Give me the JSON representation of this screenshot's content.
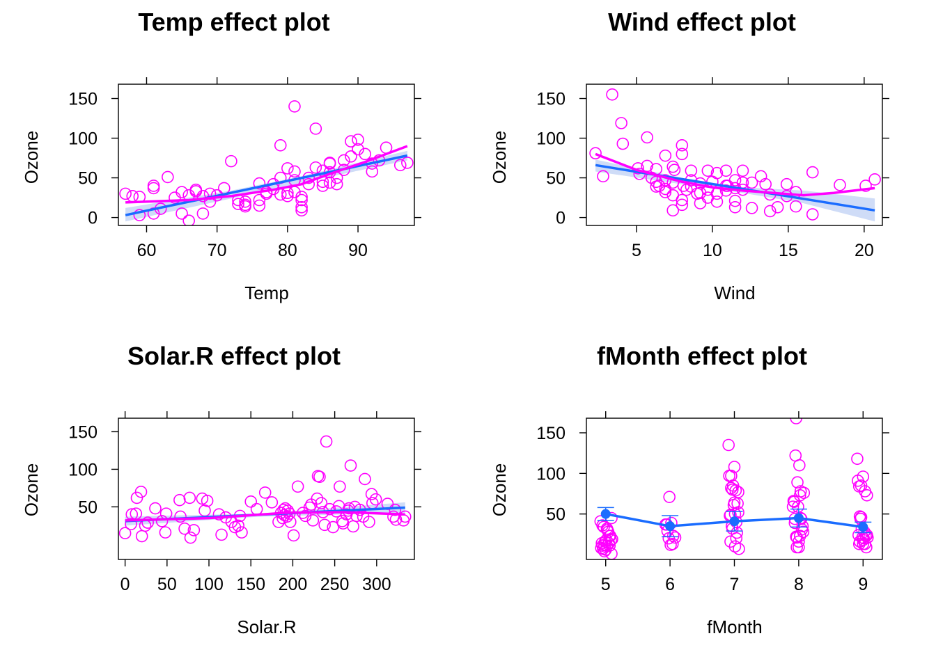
{
  "colors": {
    "points": "#ff00ff",
    "fit": "#1a6cff",
    "band": "#cfdcf7",
    "smooth": "#ff00ff",
    "axis": "#000000"
  },
  "chart_data": [
    {
      "type": "scatter",
      "title": "Temp effect plot",
      "xlabel": "Temp",
      "ylabel": "Ozone",
      "xlim": [
        56,
        98
      ],
      "ylim": [
        -10,
        168
      ],
      "xticks": [
        60,
        70,
        80,
        90
      ],
      "yticks": [
        0,
        50,
        100,
        150
      ],
      "fit": {
        "x": [
          57,
          97
        ],
        "y": [
          3,
          78
        ]
      },
      "band": {
        "x": [
          57,
          72,
          82,
          97
        ],
        "upper": [
          12,
          34,
          52,
          84
        ],
        "lower": [
          -5,
          24,
          44,
          72
        ]
      },
      "smooth": {
        "x": [
          57,
          66,
          72,
          78,
          82,
          86,
          91,
          97
        ],
        "y": [
          19,
          22,
          27,
          35,
          42,
          55,
          70,
          90
        ]
      },
      "points": {
        "x": [
          57,
          58,
          59,
          59,
          61,
          61,
          62,
          61,
          63,
          64,
          65,
          65,
          66,
          66,
          67,
          67,
          68,
          68,
          69,
          69,
          70,
          71,
          72,
          73,
          73,
          74,
          74,
          74,
          76,
          76,
          76,
          77,
          77,
          78,
          78,
          79,
          79,
          79,
          80,
          80,
          80,
          81,
          81,
          81,
          81,
          82,
          82,
          82,
          82,
          83,
          83,
          84,
          84,
          85,
          85,
          85,
          86,
          86,
          86,
          86,
          87,
          87,
          88,
          88,
          89,
          89,
          90,
          90,
          91,
          92,
          92,
          93,
          94,
          96,
          97
        ],
        "y": [
          30,
          27,
          3,
          26,
          5,
          37,
          11,
          40,
          51,
          25,
          5,
          32,
          -4,
          28,
          33,
          35,
          5,
          27,
          30,
          20,
          28,
          37,
          71,
          22,
          17,
          16,
          20,
          14,
          15,
          22,
          43,
          30,
          32,
          36,
          42,
          91,
          50,
          29,
          62,
          31,
          27,
          140,
          58,
          47,
          32,
          13,
          9,
          22,
          26,
          50,
          42,
          112,
          63,
          45,
          40,
          59,
          44,
          68,
          69,
          57,
          42,
          50,
          60,
          72,
          96,
          77,
          98,
          86,
          80,
          68,
          58,
          72,
          88,
          66,
          69
        ]
      }
    },
    {
      "type": "scatter",
      "title": "Wind effect plot",
      "xlabel": "Wind",
      "ylabel": "Ozone",
      "xlim": [
        1.7,
        21.2
      ],
      "ylim": [
        -10,
        168
      ],
      "xticks": [
        5,
        10,
        15,
        20
      ],
      "yticks": [
        0,
        50,
        100,
        150
      ],
      "fit": {
        "x": [
          2.3,
          20.7
        ],
        "y": [
          66,
          9
        ]
      },
      "band": {
        "x": [
          2.3,
          8,
          12,
          16,
          20.7
        ],
        "upper": [
          73,
          50,
          38,
          34,
          24
        ],
        "lower": [
          58,
          42,
          31,
          18,
          -5
        ]
      },
      "smooth": {
        "x": [
          2.3,
          5,
          8,
          10,
          12,
          14,
          16,
          18,
          20.7
        ],
        "y": [
          80,
          60,
          45,
          38,
          34,
          31,
          28,
          31,
          37
        ]
      },
      "points": {
        "x": [
          2.3,
          2.8,
          3.4,
          4.1,
          4.0,
          5.1,
          5.7,
          5.7,
          6.3,
          6.3,
          6.3,
          6.9,
          6.9,
          6.9,
          6.9,
          7.4,
          7.4,
          7.4,
          7.4,
          8.0,
          8.0,
          8.0,
          8.0,
          8.6,
          8.6,
          8.6,
          9.2,
          9.2,
          9.2,
          9.7,
          9.7,
          9.7,
          10.3,
          10.3,
          10.3,
          10.9,
          10.9,
          10.9,
          11.5,
          11.5,
          11.5,
          11.5,
          12.0,
          12.0,
          12.6,
          12.6,
          13.2,
          13.8,
          13.8,
          14.3,
          14.9,
          14.9,
          15.5,
          15.5,
          16.6,
          16.6,
          18.4,
          20.1,
          20.7,
          5.2,
          6.0,
          7.5,
          8.1,
          9.0,
          10.0,
          11.0,
          12.0,
          13.5,
          6.5,
          8.3
        ],
        "y": [
          81,
          52,
          155,
          93,
          119,
          62,
          101,
          65,
          39,
          45,
          61,
          78,
          47,
          32,
          36,
          64,
          28,
          9,
          44,
          91,
          80,
          22,
          16,
          59,
          39,
          47,
          18,
          43,
          31,
          59,
          35,
          25,
          56,
          30,
          20,
          59,
          40,
          34,
          47,
          21,
          13,
          37,
          44,
          59,
          12,
          44,
          52,
          29,
          8,
          13,
          42,
          27,
          14,
          32,
          57,
          4,
          41,
          40,
          48,
          55,
          50,
          60,
          40,
          30,
          45,
          40,
          35,
          42,
          40,
          35
        ]
      }
    },
    {
      "type": "scatter",
      "title": "Solar.R effect plot",
      "xlabel": "Solar.R",
      "ylabel": "Ozone",
      "xlim": [
        -8,
        345
      ],
      "ylim": [
        -20,
        168
      ],
      "xticks": [
        0,
        50,
        100,
        150,
        200,
        250,
        300
      ],
      "yticks": [
        50,
        100,
        150
      ],
      "fit": {
        "x": [
          0,
          334
        ],
        "y": [
          31,
          49
        ]
      },
      "band": {
        "x": [
          0,
          160,
          334
        ],
        "upper": [
          37,
          41,
          56
        ],
        "lower": [
          25,
          37,
          42
        ]
      },
      "smooth": {
        "x": [
          0,
          100,
          190,
          260,
          334
        ],
        "y": [
          32,
          35,
          42,
          43,
          40
        ]
      },
      "points": {
        "x": [
          0,
          7,
          8,
          13,
          14,
          19,
          20,
          24,
          27,
          36,
          44,
          48,
          49,
          65,
          66,
          71,
          77,
          78,
          82,
          92,
          95,
          98,
          112,
          115,
          120,
          127,
          131,
          135,
          137,
          139,
          150,
          157,
          167,
          175,
          183,
          186,
          188,
          189,
          190,
          191,
          193,
          194,
          196,
          197,
          201,
          206,
          212,
          215,
          220,
          222,
          224,
          229,
          230,
          232,
          234,
          236,
          238,
          240,
          244,
          248,
          252,
          255,
          256,
          259,
          260,
          264,
          266,
          267,
          269,
          272,
          274,
          276,
          280,
          284,
          286,
          291,
          294,
          295,
          299,
          313,
          320,
          322,
          323,
          332,
          334
        ],
        "y": [
          15,
          27,
          40,
          41,
          62,
          70,
          11,
          25,
          29,
          48,
          31,
          16,
          41,
          59,
          37,
          21,
          62,
          9,
          19,
          61,
          45,
          58,
          40,
          13,
          36,
          30,
          23,
          25,
          38,
          16,
          57,
          47,
          69,
          56,
          30,
          42,
          35,
          46,
          39,
          48,
          37,
          45,
          41,
          30,
          12,
          77,
          42,
          38,
          49,
          53,
          32,
          61,
          91,
          90,
          55,
          43,
          26,
          137,
          47,
          23,
          44,
          51,
          77,
          31,
          28,
          40,
          45,
          48,
          105,
          24,
          50,
          38,
          46,
          37,
          87,
          30,
          67,
          55,
          60,
          54,
          37,
          46,
          33,
          32,
          37
        ]
      }
    },
    {
      "type": "scatter",
      "title": "fMonth effect plot",
      "xlabel": "fMonth",
      "ylabel": "Ozone",
      "xlim": [
        4.7,
        9.3
      ],
      "ylim": [
        -6,
        168
      ],
      "xticks": [
        5,
        6,
        7,
        8,
        9
      ],
      "yticks": [
        50,
        100,
        150
      ],
      "fit": {
        "x": [
          5,
          6,
          7,
          8,
          9
        ],
        "y": [
          50,
          35,
          41,
          45,
          34
        ]
      },
      "errorbars": {
        "x": [
          5,
          6,
          7,
          8,
          9
        ],
        "upper": [
          58,
          48,
          53,
          56,
          40
        ],
        "lower": [
          42,
          22,
          29,
          34,
          27
        ]
      },
      "points": {
        "x": [
          4.92,
          4.95,
          4.98,
          5.01,
          5.04,
          5.07,
          5.1,
          4.93,
          4.96,
          4.99,
          5.02,
          5.05,
          5.08,
          4.94,
          4.97,
          5.0,
          5.03,
          5.06,
          5.09,
          4.95,
          4.98,
          5.02,
          5.06,
          5.09,
          5.93,
          5.96,
          5.99,
          6.02,
          6.05,
          6.08,
          5.95,
          5.98,
          6.01,
          6.04,
          6.91,
          6.94,
          6.97,
          7.0,
          7.03,
          7.06,
          6.92,
          6.95,
          6.98,
          7.01,
          7.04,
          7.07,
          6.93,
          6.96,
          6.99,
          7.02,
          7.05,
          6.94,
          6.97,
          7.0,
          7.03,
          7.06,
          6.95,
          7.01,
          7.91,
          7.94,
          7.97,
          8.0,
          8.03,
          8.06,
          7.92,
          7.95,
          7.98,
          8.01,
          8.04,
          8.07,
          7.93,
          7.96,
          7.99,
          8.02,
          8.05,
          7.94,
          7.97,
          8.0,
          8.03,
          7.96,
          8.02,
          8.08,
          8.91,
          8.94,
          8.97,
          9.0,
          9.03,
          9.06,
          8.92,
          8.95,
          8.98,
          9.01,
          9.04,
          9.07,
          8.93,
          8.96,
          8.99,
          9.02,
          9.05,
          8.94,
          8.97,
          9.0,
          9.03,
          9.06,
          8.95,
          9.0
        ],
        "y": [
          41,
          36,
          12,
          18,
          28,
          23,
          19,
          8,
          7,
          16,
          11,
          14,
          18,
          14,
          34,
          6,
          30,
          11,
          1,
          11,
          4,
          32,
          23,
          45,
          37,
          29,
          71,
          39,
          23,
          21,
          37,
          20,
          12,
          13,
          135,
          49,
          32,
          64,
          40,
          77,
          97,
          97,
          85,
          10,
          27,
          7,
          48,
          35,
          61,
          79,
          63,
          16,
          80,
          108,
          20,
          52,
          82,
          50,
          59,
          39,
          9,
          16,
          78,
          35,
          66,
          122,
          89,
          110,
          44,
          28,
          65,
          22,
          59,
          23,
          31,
          44,
          21,
          9,
          45,
          168,
          73,
          76,
          118,
          84,
          85,
          96,
          78,
          73,
          91,
          47,
          32,
          20,
          23,
          21,
          24,
          44,
          21,
          28,
          9,
          13,
          46,
          18,
          13,
          24,
          16,
          13
        ]
      }
    }
  ]
}
